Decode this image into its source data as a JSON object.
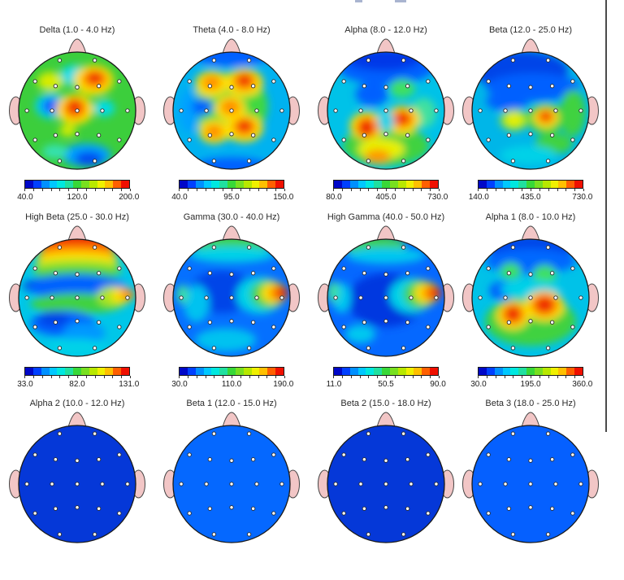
{
  "page": {
    "background": "#ffffff",
    "right_border_color": "#4a4a4a"
  },
  "head_style": {
    "skin": "#F2C6C6",
    "outline": "#1a1a1a",
    "electrode_fill": "#ffffff",
    "electrode_ring": "#2a2a2a"
  },
  "colorbar_palette": [
    "#0008C8",
    "#0040FF",
    "#0090FF",
    "#00C8FF",
    "#00E8E0",
    "#20E0A0",
    "#38D838",
    "#78E020",
    "#B8E800",
    "#F0F000",
    "#FFC000",
    "#FF6000",
    "#F01000"
  ],
  "chart_data": {
    "type": "heatmap",
    "description": "Grid of EEG band-power topographic head maps (10-20 electrode montage), 4 columns x 3 rows, third row cropped by viewport",
    "layout": {
      "columns": 4,
      "rows": 3,
      "legend_position": "below-each-map"
    },
    "electrodes": {
      "count": 19,
      "labels_visible": false,
      "positions": [
        [
          -0.3,
          -0.86
        ],
        [
          0.3,
          -0.86
        ],
        [
          -0.72,
          -0.5
        ],
        [
          -0.37,
          -0.42
        ],
        [
          0,
          -0.4
        ],
        [
          0.37,
          -0.42
        ],
        [
          0.72,
          -0.5
        ],
        [
          -0.86,
          0
        ],
        [
          -0.43,
          0
        ],
        [
          0,
          0
        ],
        [
          0.43,
          0
        ],
        [
          0.86,
          0
        ],
        [
          -0.72,
          0.5
        ],
        [
          -0.37,
          0.42
        ],
        [
          0,
          0.4
        ],
        [
          0.37,
          0.42
        ],
        [
          0.72,
          0.5
        ],
        [
          -0.3,
          0.86
        ],
        [
          0.3,
          0.86
        ]
      ]
    },
    "panels": [
      {
        "title": "Delta (1.0 - 4.0 Hz)",
        "band": "Delta",
        "range_hz": [
          1.0,
          4.0
        ],
        "scale": {
          "min": "40.0",
          "mid": "120.0",
          "max": "200.0"
        },
        "base": "#3CCE3C",
        "blobs": [
          [
            48,
            20,
            13,
            9,
            "#00DCE8"
          ],
          [
            27,
            25,
            11,
            8,
            "#D8EC00"
          ],
          [
            64,
            24,
            17,
            13,
            "#FFE000"
          ],
          [
            65,
            23,
            11,
            8,
            "#FF8C00"
          ],
          [
            65,
            22,
            6.5,
            5,
            "#EE2200"
          ],
          [
            28,
            46,
            14,
            11,
            "#00CFF0"
          ],
          [
            28,
            46,
            8,
            6.5,
            "#0858FF"
          ],
          [
            48,
            49,
            16,
            13,
            "#FFE000"
          ],
          [
            48,
            48,
            10,
            9,
            "#FF8C00"
          ],
          [
            48,
            47,
            6,
            6,
            "#EE2200"
          ],
          [
            73,
            48,
            9,
            7,
            "#00DCE8"
          ],
          [
            42,
            67,
            7,
            5,
            "#D8EC00"
          ],
          [
            58,
            88,
            21,
            10,
            "#00A2FF"
          ],
          [
            60,
            91,
            12,
            6,
            "#0048F0"
          ],
          [
            31,
            85,
            11,
            6,
            "#35E2B2"
          ]
        ]
      },
      {
        "title": "Theta (4.0 - 8.0 Hz)",
        "band": "Theta",
        "range_hz": [
          4.0,
          8.0
        ],
        "scale": {
          "min": "40.0",
          "mid": "95.0",
          "max": "150.0"
        },
        "base": "#00B2F0",
        "blobs": [
          [
            48,
            46,
            33,
            29,
            "#3FD83F"
          ],
          [
            50,
            2,
            34,
            10,
            "#0560FF"
          ],
          [
            50,
            99,
            34,
            9,
            "#0560FF"
          ],
          [
            14,
            50,
            9,
            18,
            "#00A2FF"
          ],
          [
            25,
            47,
            9,
            7,
            "#0560FF"
          ],
          [
            33,
            27,
            14,
            11,
            "#FFE000"
          ],
          [
            33,
            26,
            8,
            6,
            "#FF8C00"
          ],
          [
            61,
            26,
            16,
            12,
            "#FFE000"
          ],
          [
            61,
            25,
            10,
            8,
            "#FF8C00"
          ],
          [
            61,
            24,
            6,
            5,
            "#EE2200"
          ],
          [
            49,
            48,
            13,
            11,
            "#FFE000"
          ],
          [
            49,
            47,
            8,
            6.5,
            "#FF8C00"
          ],
          [
            61,
            65,
            16,
            12,
            "#FFE000"
          ],
          [
            61,
            64,
            10,
            8,
            "#FF8C00"
          ],
          [
            61,
            63,
            6,
            5,
            "#EE2200"
          ],
          [
            35,
            68,
            13,
            10,
            "#FFE000"
          ],
          [
            35,
            68,
            7.5,
            6,
            "#FF8C00"
          ]
        ]
      },
      {
        "title": "Alpha (8.0 - 12.0 Hz)",
        "band": "Alpha",
        "range_hz": [
          8.0,
          12.0
        ],
        "scale": {
          "min": "80.0",
          "mid": "405.0",
          "max": "730.0"
        },
        "base": "#00C2E8",
        "blobs": [
          [
            50,
            12,
            42,
            16,
            "#0560FF"
          ],
          [
            48,
            6,
            32,
            10,
            "#0038E8"
          ],
          [
            38,
            36,
            14,
            10,
            "#0560FF"
          ],
          [
            64,
            31,
            11,
            8,
            "#3FE060"
          ],
          [
            82,
            52,
            11,
            13,
            "#3FE0A0"
          ],
          [
            50,
            80,
            37,
            17,
            "#3FD23F"
          ],
          [
            46,
            83,
            20,
            9,
            "#E8F000"
          ],
          [
            43,
            89,
            11,
            6,
            "#FF9800"
          ],
          [
            34,
            63,
            15,
            12,
            "#FFE000"
          ],
          [
            34,
            64,
            10,
            9,
            "#FF8C00"
          ],
          [
            33,
            65,
            6,
            8,
            "#EE2200"
          ],
          [
            64,
            58,
            15,
            12,
            "#FFE000"
          ],
          [
            64,
            57,
            10,
            8,
            "#FF8C00"
          ],
          [
            64,
            57,
            6,
            5,
            "#EE2200"
          ],
          [
            50,
            59,
            7,
            9,
            "#00D2E8"
          ]
        ]
      },
      {
        "title": "Beta (12.0 - 25.0 Hz)",
        "band": "Beta",
        "range_hz": [
          12.0,
          25.0
        ],
        "scale": {
          "min": "140.0",
          "mid": "435.0",
          "max": "730.0"
        },
        "base": "#00B6E8",
        "blobs": [
          [
            42,
            16,
            40,
            17,
            "#0545E8"
          ],
          [
            52,
            30,
            40,
            12,
            "#0560FF"
          ],
          [
            30,
            42,
            18,
            8,
            "#0560FF"
          ],
          [
            86,
            52,
            11,
            20,
            "#3FD23F"
          ],
          [
            70,
            78,
            16,
            9,
            "#3FD23F"
          ],
          [
            36,
            58,
            12,
            9,
            "#A8E420"
          ],
          [
            36,
            58,
            7,
            5.5,
            "#E8F000"
          ],
          [
            63,
            57,
            16,
            13,
            "#3FD23F"
          ],
          [
            63,
            56,
            11,
            9,
            "#FFE000"
          ],
          [
            63,
            55,
            7.5,
            6,
            "#FF8C00"
          ],
          [
            63,
            55,
            4.5,
            4,
            "#EE2200"
          ],
          [
            48,
            88,
            24,
            8,
            "#00D2E8"
          ]
        ]
      },
      {
        "title": "High Beta (25.0 - 30.0 Hz)",
        "band": "High Beta",
        "range_hz": [
          25.0,
          30.0
        ],
        "scale": {
          "min": "33.0",
          "mid": "82.0",
          "max": "131.0"
        },
        "base": "#00C6E8",
        "blobs": [
          [
            50,
            3,
            31,
            9,
            "#EE2200"
          ],
          [
            50,
            11,
            33,
            6.5,
            "#FF8C00"
          ],
          [
            50,
            17,
            35,
            6,
            "#FFE000"
          ],
          [
            50,
            23,
            37,
            6,
            "#A8E420"
          ],
          [
            50,
            29,
            38,
            6,
            "#3FD23F"
          ],
          [
            44,
            40,
            40,
            9,
            "#0538D8"
          ],
          [
            50,
            41,
            42,
            11,
            "#0560FF"
          ],
          [
            50,
            55,
            40,
            9,
            "#3FD23F"
          ],
          [
            80,
            49,
            13,
            9,
            "#A8E420"
          ],
          [
            88,
            48,
            9,
            7,
            "#FFE000"
          ],
          [
            93,
            47,
            6,
            5,
            "#FF8C00"
          ],
          [
            38,
            72,
            28,
            11,
            "#0560FF"
          ],
          [
            30,
            68,
            13,
            7,
            "#0545E8"
          ],
          [
            56,
            80,
            18,
            9,
            "#0598FF"
          ],
          [
            50,
            92,
            24,
            7,
            "#00D2E8"
          ]
        ]
      },
      {
        "title": "Gamma (30.0 - 40.0 Hz)",
        "band": "Gamma",
        "range_hz": [
          30.0,
          40.0
        ],
        "scale": {
          "min": "30.0",
          "mid": "110.0",
          "max": "190.0"
        },
        "base": "#0570FF",
        "blobs": [
          [
            50,
            3,
            35,
            8,
            "#3FD23F"
          ],
          [
            50,
            13,
            37,
            7,
            "#00D2E8"
          ],
          [
            42,
            45,
            28,
            18,
            "#0545E8"
          ],
          [
            20,
            55,
            11,
            16,
            "#00C2F0"
          ],
          [
            8,
            47,
            5,
            8,
            "#3FE0A0"
          ],
          [
            74,
            48,
            20,
            16,
            "#00D2E8"
          ],
          [
            81,
            47,
            15,
            12,
            "#3FD23F"
          ],
          [
            86,
            46,
            11,
            9,
            "#FFE000"
          ],
          [
            90,
            46,
            8,
            7,
            "#FF8C00"
          ],
          [
            93,
            46,
            5,
            5,
            "#EE2200"
          ],
          [
            45,
            86,
            26,
            10,
            "#00C2F0"
          ]
        ]
      },
      {
        "title": "High Gamma (40.0 - 50.0 Hz)",
        "band": "High Gamma",
        "range_hz": [
          40.0,
          50.0
        ],
        "scale": {
          "min": "11.0",
          "mid": "50.5",
          "max": "90.0"
        },
        "base": "#0568FF",
        "blobs": [
          [
            40,
            5,
            27,
            8,
            "#3FD23F"
          ],
          [
            50,
            14,
            34,
            7,
            "#00C8F0"
          ],
          [
            50,
            52,
            33,
            23,
            "#0538E0"
          ],
          [
            12,
            50,
            8,
            13,
            "#00C8F0"
          ],
          [
            5,
            45,
            5,
            9,
            "#3FE0A0"
          ],
          [
            72,
            48,
            19,
            15,
            "#00D2E8"
          ],
          [
            79,
            47,
            14,
            12,
            "#3FD23F"
          ],
          [
            85,
            46,
            11,
            9,
            "#FFE000"
          ],
          [
            89,
            46,
            8,
            7,
            "#FF8C00"
          ],
          [
            92,
            46,
            5,
            4.5,
            "#EE2200"
          ],
          [
            28,
            81,
            13,
            8,
            "#00C8F0"
          ]
        ]
      },
      {
        "title": "Alpha 1 (8.0 - 10.0 Hz)",
        "band": "Alpha 1",
        "range_hz": [
          8.0,
          10.0
        ],
        "scale": {
          "min": "30.0",
          "mid": "195.0",
          "max": "360.0"
        },
        "base": "#00C2E8",
        "blobs": [
          [
            50,
            8,
            37,
            12,
            "#0545E8"
          ],
          [
            50,
            19,
            39,
            11,
            "#0568FF"
          ],
          [
            33,
            27,
            9,
            7,
            "#3FE060"
          ],
          [
            62,
            30,
            10,
            8,
            "#3FE060"
          ],
          [
            27,
            44,
            12,
            8,
            "#0555FF"
          ],
          [
            50,
            70,
            39,
            21,
            "#3FD23F"
          ],
          [
            50,
            43,
            26,
            8,
            "#00D2E8"
          ],
          [
            35,
            65,
            14,
            12,
            "#FFE000"
          ],
          [
            35,
            64,
            10,
            9,
            "#FF8C00"
          ],
          [
            35,
            64,
            6,
            6.5,
            "#EE2200"
          ],
          [
            62,
            57,
            17,
            13,
            "#FFE000"
          ],
          [
            62,
            56,
            12,
            10,
            "#FF8C00"
          ],
          [
            62,
            56,
            7.5,
            6.5,
            "#EE2200"
          ]
        ]
      },
      {
        "title": "Alpha 2 (10.0 - 12.0 Hz)",
        "band": "Alpha 2",
        "range_hz": [
          10.0,
          12.0
        ],
        "partially_visible": true,
        "base": "#0538D8",
        "blobs": []
      },
      {
        "title": "Beta 1 (12.0 - 15.0 Hz)",
        "band": "Beta 1",
        "range_hz": [
          12.0,
          15.0
        ],
        "partially_visible": true,
        "base": "#0568FF",
        "blobs": []
      },
      {
        "title": "Beta 2 (15.0 - 18.0 Hz)",
        "band": "Beta 2",
        "range_hz": [
          15.0,
          18.0
        ],
        "partially_visible": true,
        "base": "#0538D8",
        "blobs": []
      },
      {
        "title": "Beta 3 (18.0 - 25.0 Hz)",
        "band": "Beta 3",
        "range_hz": [
          18.0,
          25.0
        ],
        "partially_visible": true,
        "base": "#0560FF",
        "blobs": []
      }
    ]
  }
}
